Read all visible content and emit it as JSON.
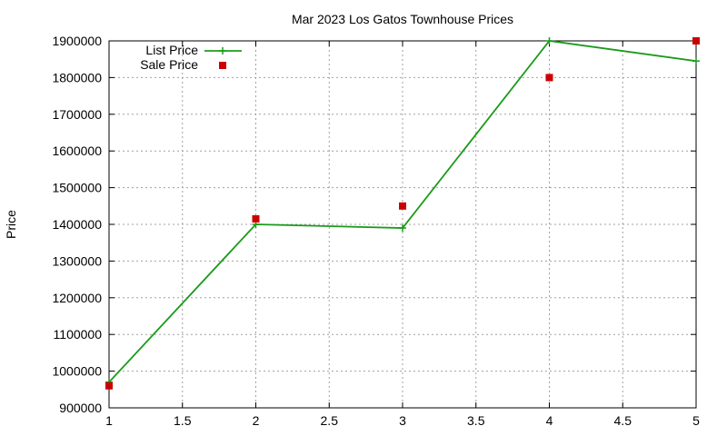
{
  "chart_data": {
    "type": "line",
    "title": "Mar 2023 Los Gatos Townhouse Prices",
    "xlabel": "",
    "ylabel": "Price",
    "xlim": [
      1,
      5
    ],
    "ylim": [
      900000,
      1900000
    ],
    "x_ticks": [
      "1",
      "1.5",
      "2",
      "2.5",
      "3",
      "3.5",
      "4",
      "4.5",
      "5"
    ],
    "y_ticks": [
      "900000",
      "1000000",
      "1100000",
      "1200000",
      "1300000",
      "1400000",
      "1500000",
      "1600000",
      "1700000",
      "1800000",
      "1900000"
    ],
    "grid": true,
    "legend_position": "top-left",
    "series": [
      {
        "name": "List Price",
        "style": "line-with-plus",
        "color": "#1a9b1a",
        "x": [
          1,
          2,
          3,
          4,
          5
        ],
        "y": [
          970000,
          1400000,
          1390000,
          1900000,
          1845000
        ]
      },
      {
        "name": "Sale Price",
        "style": "square-points",
        "color": "#cc0000",
        "x": [
          1,
          2,
          3,
          4,
          5
        ],
        "y": [
          960000,
          1415000,
          1450000,
          1800000,
          1900000
        ]
      }
    ]
  }
}
